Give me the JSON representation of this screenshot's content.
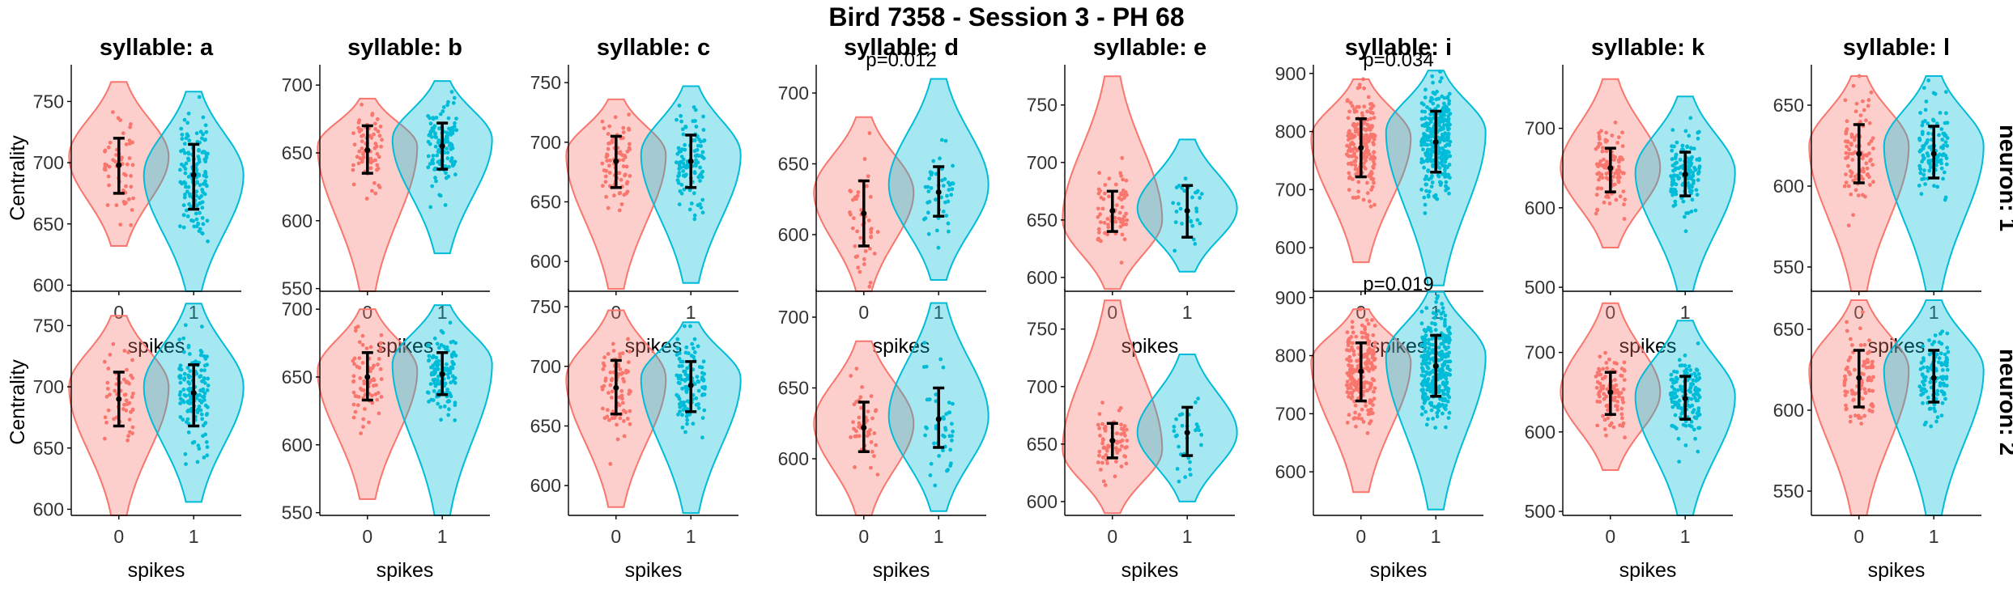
{
  "chart_data": {
    "type": "violin",
    "title": "Bird 7358 - Session 3 - PH 68",
    "xlabel": "spikes",
    "ylabel": "Centrality",
    "x_categories": [
      "0",
      "1"
    ],
    "colors": {
      "0": "#F8766D",
      "1": "#00BCD8"
    },
    "rows": [
      "neuron: 1",
      "neuron: 2"
    ],
    "panels": [
      {
        "syllable": "syllable: a",
        "yticks": [
          600,
          650,
          700,
          750
        ],
        "ylim": [
          595,
          780
        ],
        "annotation": [
          "",
          ""
        ],
        "groups": [
          [
            {
              "n": 55,
              "min": 632,
              "max": 766,
              "center": 698,
              "err": [
                675,
                720
              ],
              "peak": 705
            },
            {
              "n": 140,
              "min": 595,
              "max": 758,
              "center": 690,
              "err": [
                662,
                715
              ],
              "peak": 690
            }
          ],
          [
            {
              "n": 55,
              "min": 595,
              "max": 758,
              "center": 690,
              "err": [
                668,
                712
              ],
              "peak": 700
            },
            {
              "n": 140,
              "min": 606,
              "max": 768,
              "center": 695,
              "err": [
                668,
                718
              ],
              "peak": 700
            }
          ]
        ]
      },
      {
        "syllable": "syllable: b",
        "yticks": [
          550,
          600,
          650,
          700
        ],
        "ylim": [
          548,
          715
        ],
        "annotation": [
          "",
          ""
        ],
        "groups": [
          [
            {
              "n": 70,
              "min": 548,
              "max": 690,
              "center": 652,
              "err": [
                635,
                670
              ],
              "peak": 655
            },
            {
              "n": 120,
              "min": 576,
              "max": 703,
              "center": 655,
              "err": [
                638,
                672
              ],
              "peak": 660
            }
          ],
          [
            {
              "n": 70,
              "min": 560,
              "max": 700,
              "center": 650,
              "err": [
                633,
                668
              ],
              "peak": 655
            },
            {
              "n": 120,
              "min": 548,
              "max": 703,
              "center": 652,
              "err": [
                637,
                668
              ],
              "peak": 660
            }
          ]
        ]
      },
      {
        "syllable": "syllable: c",
        "yticks": [
          600,
          650,
          700,
          750
        ],
        "ylim": [
          575,
          765
        ],
        "annotation": [
          "",
          ""
        ],
        "groups": [
          [
            {
              "n": 80,
              "min": 577,
              "max": 736,
              "center": 684,
              "err": [
                662,
                705
              ],
              "peak": 690
            },
            {
              "n": 110,
              "min": 582,
              "max": 747,
              "center": 684,
              "err": [
                662,
                706
              ],
              "peak": 690
            }
          ],
          [
            {
              "n": 80,
              "min": 582,
              "max": 747,
              "center": 682,
              "err": [
                660,
                705
              ],
              "peak": 690
            },
            {
              "n": 110,
              "min": 577,
              "max": 737,
              "center": 684,
              "err": [
                662,
                704
              ],
              "peak": 690
            }
          ]
        ]
      },
      {
        "syllable": "syllable: d",
        "yticks": [
          600,
          650,
          700
        ],
        "ylim": [
          560,
          720
        ],
        "annotation": [
          "p=0.012",
          ""
        ],
        "groups": [
          [
            {
              "n": 45,
              "min": 560,
              "max": 683,
              "center": 615,
              "err": [
                592,
                638
              ],
              "peak": 630
            },
            {
              "n": 45,
              "min": 568,
              "max": 710,
              "center": 630,
              "err": [
                613,
                648
              ],
              "peak": 635
            }
          ],
          [
            {
              "n": 45,
              "min": 560,
              "max": 683,
              "center": 622,
              "err": [
                605,
                640
              ],
              "peak": 625
            },
            {
              "n": 45,
              "min": 563,
              "max": 710,
              "center": 628,
              "err": [
                608,
                650
              ],
              "peak": 630
            }
          ]
        ]
      },
      {
        "syllable": "syllable: e",
        "yticks": [
          600,
          650,
          700,
          750
        ],
        "ylim": [
          588,
          785
        ],
        "annotation": [
          "",
          ""
        ],
        "groups": [
          [
            {
              "n": 70,
              "min": 590,
              "max": 775,
              "center": 658,
              "err": [
                640,
                675
              ],
              "peak": 650
            },
            {
              "n": 30,
              "min": 605,
              "max": 720,
              "center": 658,
              "err": [
                635,
                680
              ],
              "peak": 660
            }
          ],
          [
            {
              "n": 70,
              "min": 590,
              "max": 775,
              "center": 653,
              "err": [
                638,
                668
              ],
              "peak": 645
            },
            {
              "n": 30,
              "min": 600,
              "max": 728,
              "center": 660,
              "err": [
                640,
                682
              ],
              "peak": 660
            }
          ]
        ]
      },
      {
        "syllable": "syllable: i",
        "yticks": [
          600,
          700,
          800,
          900
        ],
        "ylim": [
          525,
          915
        ],
        "annotation": [
          "p=0.034",
          "p=0.019"
        ],
        "groups": [
          [
            {
              "n": 200,
              "min": 575,
              "max": 890,
              "center": 772,
              "err": [
                722,
                822
              ],
              "peak": 790
            },
            {
              "n": 300,
              "min": 535,
              "max": 905,
              "center": 782,
              "err": [
                730,
                835
              ],
              "peak": 800
            }
          ],
          [
            {
              "n": 200,
              "min": 565,
              "max": 880,
              "center": 773,
              "err": [
                722,
                822
              ],
              "peak": 790
            },
            {
              "n": 300,
              "min": 535,
              "max": 910,
              "center": 782,
              "err": [
                730,
                835
              ],
              "peak": 800
            }
          ]
        ]
      },
      {
        "syllable": "syllable: k",
        "yticks": [
          500,
          600,
          700
        ],
        "ylim": [
          495,
          780
        ],
        "annotation": [
          "",
          ""
        ],
        "groups": [
          [
            {
              "n": 100,
              "min": 550,
              "max": 762,
              "center": 650,
              "err": [
                620,
                675
              ],
              "peak": 650
            },
            {
              "n": 140,
              "min": 495,
              "max": 740,
              "center": 642,
              "err": [
                615,
                670
              ],
              "peak": 645
            }
          ],
          [
            {
              "n": 100,
              "min": 552,
              "max": 762,
              "center": 650,
              "err": [
                622,
                675
              ],
              "peak": 650
            },
            {
              "n": 140,
              "min": 495,
              "max": 740,
              "center": 642,
              "err": [
                616,
                670
              ],
              "peak": 645
            }
          ]
        ]
      },
      {
        "syllable": "syllable: l",
        "yticks": [
          550,
          600,
          650
        ],
        "ylim": [
          535,
          675
        ],
        "annotation": [
          "",
          ""
        ],
        "groups": [
          [
            {
              "n": 90,
              "min": 535,
              "max": 668,
              "center": 620,
              "err": [
                602,
                638
              ],
              "peak": 625
            },
            {
              "n": 110,
              "min": 535,
              "max": 668,
              "center": 620,
              "err": [
                605,
                637
              ],
              "peak": 625
            }
          ],
          [
            {
              "n": 90,
              "min": 535,
              "max": 668,
              "center": 620,
              "err": [
                602,
                637
              ],
              "peak": 625
            },
            {
              "n": 110,
              "min": 535,
              "max": 668,
              "center": 620,
              "err": [
                605,
                637
              ],
              "peak": 625
            }
          ]
        ]
      }
    ]
  }
}
